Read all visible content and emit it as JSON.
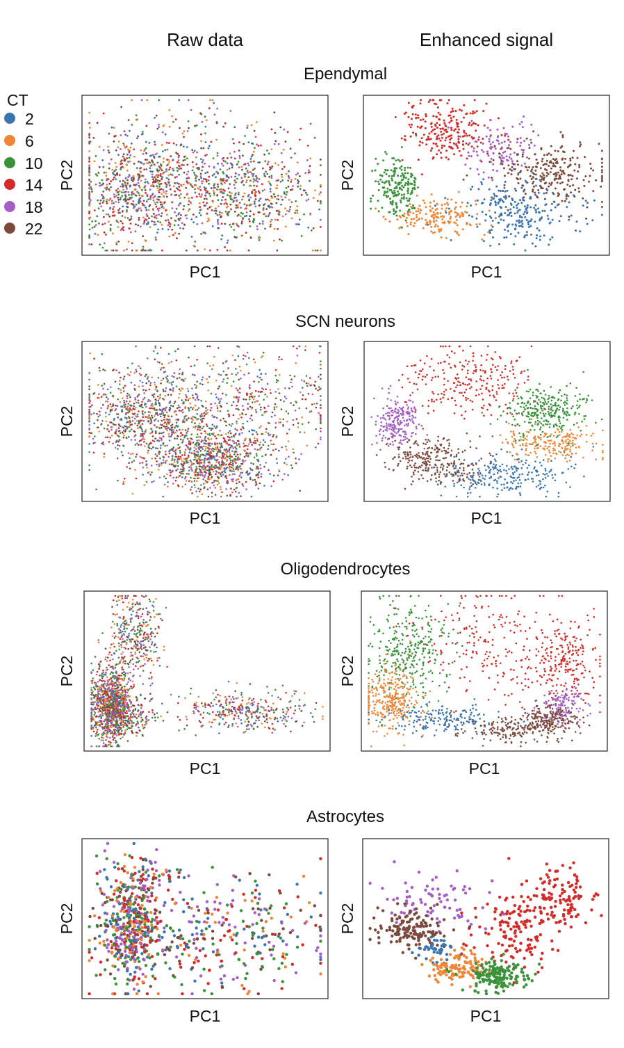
{
  "figure": {
    "column_titles": [
      "Raw data",
      "Enhanced signal"
    ]
  },
  "legend": {
    "title": "CT",
    "items": [
      {
        "label": "2",
        "color": "#3b75af"
      },
      {
        "label": "6",
        "color": "#ef8636"
      },
      {
        "label": "10",
        "color": "#3a923a"
      },
      {
        "label": "14",
        "color": "#d62a28"
      },
      {
        "label": "18",
        "color": "#a45ec5"
      },
      {
        "label": "22",
        "color": "#7b4a3c"
      }
    ]
  },
  "chart_data": [
    {
      "type": "scatter",
      "panel": "Ependymal – Raw data",
      "title": "Ependymal",
      "column": "Raw data",
      "xlabel": "PC1",
      "ylabel": "PC2",
      "series_by": "CT",
      "categories": [
        "2",
        "6",
        "10",
        "14",
        "18",
        "22"
      ]
    },
    {
      "type": "scatter",
      "panel": "Ependymal – Enhanced signal",
      "title": "Ependymal",
      "column": "Enhanced signal",
      "xlabel": "PC1",
      "ylabel": "PC2",
      "series_by": "CT",
      "categories": [
        "2",
        "6",
        "10",
        "14",
        "18",
        "22"
      ]
    },
    {
      "type": "scatter",
      "panel": "SCN neurons – Raw data",
      "title": "SCN neurons",
      "column": "Raw data",
      "xlabel": "PC1",
      "ylabel": "PC2",
      "series_by": "CT",
      "categories": [
        "2",
        "6",
        "10",
        "14",
        "18",
        "22"
      ]
    },
    {
      "type": "scatter",
      "panel": "SCN neurons – Enhanced signal",
      "title": "SCN neurons",
      "column": "Enhanced signal",
      "xlabel": "PC1",
      "ylabel": "PC2",
      "series_by": "CT",
      "categories": [
        "2",
        "6",
        "10",
        "14",
        "18",
        "22"
      ]
    },
    {
      "type": "scatter",
      "panel": "Oligodendrocytes – Raw data",
      "title": "Oligodendrocytes",
      "column": "Raw data",
      "xlabel": "PC1",
      "ylabel": "PC2",
      "series_by": "CT",
      "categories": [
        "2",
        "6",
        "10",
        "14",
        "18",
        "22"
      ]
    },
    {
      "type": "scatter",
      "panel": "Oligodendrocytes – Enhanced signal",
      "title": "Oligodendrocytes",
      "column": "Enhanced signal",
      "xlabel": "PC1",
      "ylabel": "PC2",
      "series_by": "CT",
      "categories": [
        "2",
        "6",
        "10",
        "14",
        "18",
        "22"
      ]
    },
    {
      "type": "scatter",
      "panel": "Astrocytes – Raw data",
      "title": "Astrocytes",
      "column": "Raw data",
      "xlabel": "PC1",
      "ylabel": "PC2",
      "series_by": "CT",
      "categories": [
        "2",
        "6",
        "10",
        "14",
        "18",
        "22"
      ]
    },
    {
      "type": "scatter",
      "panel": "Astrocytes – Enhanced signal",
      "title": "Astrocytes",
      "column": "Enhanced signal",
      "xlabel": "PC1",
      "ylabel": "PC2",
      "series_by": "CT",
      "categories": [
        "2",
        "6",
        "10",
        "14",
        "18",
        "22"
      ]
    }
  ],
  "rows": [
    {
      "title": "Ependymal"
    },
    {
      "title": "SCN neurons"
    },
    {
      "title": "Oligodendrocytes"
    },
    {
      "title": "Astrocytes"
    }
  ]
}
